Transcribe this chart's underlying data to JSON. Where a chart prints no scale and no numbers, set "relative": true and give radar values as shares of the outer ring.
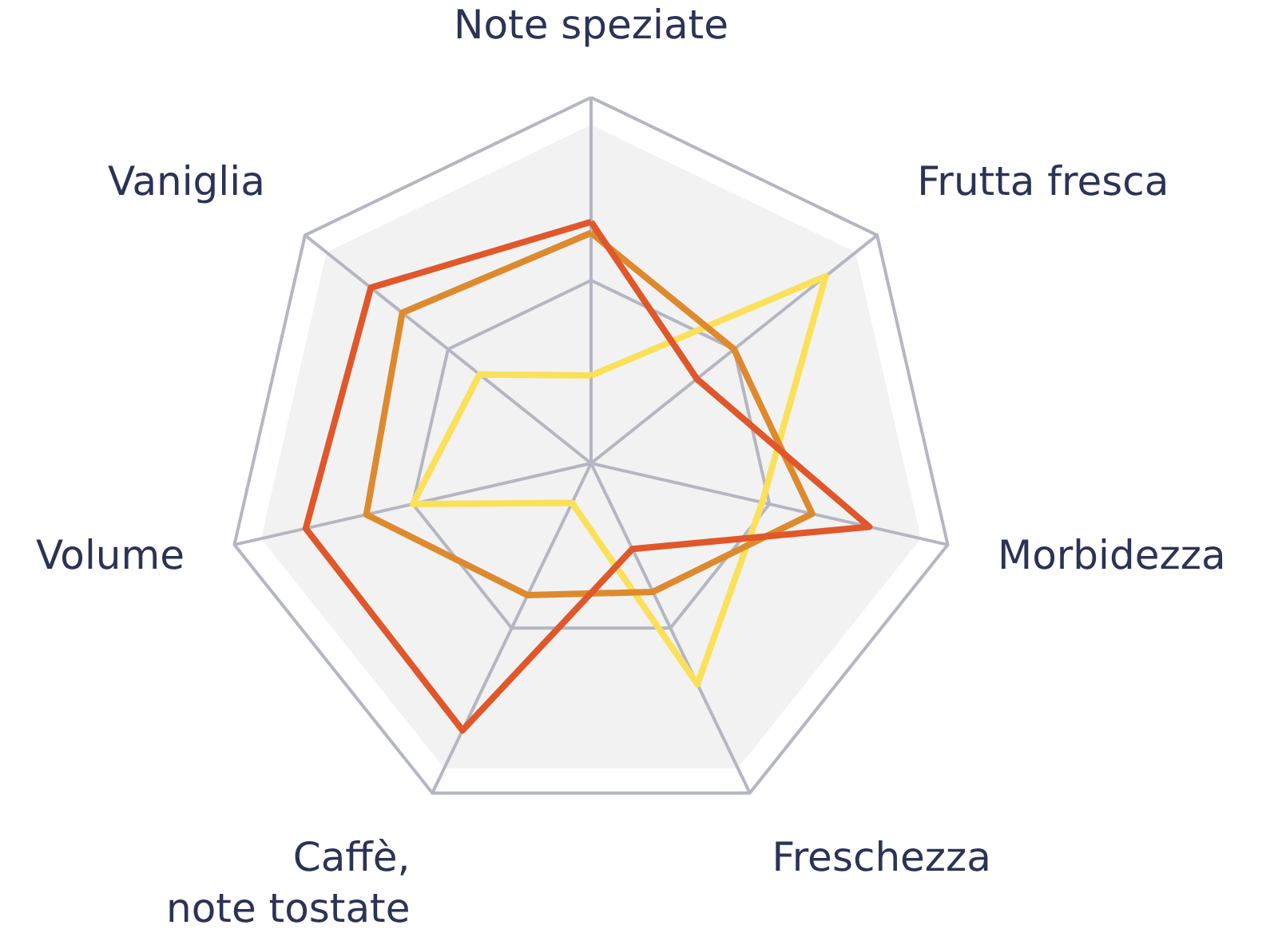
{
  "chart_data": {
    "type": "radar",
    "relative": true,
    "grid": true,
    "categories": [
      "Note speziate",
      "Frutta fresca",
      "Morbidezza",
      "Freschezza",
      "Caffè,\nnote tostate",
      "Volume",
      "Vaniglia"
    ],
    "series": [
      {
        "color": "#fbe05a",
        "values": [
          0.24,
          0.82,
          0.48,
          0.67,
          0.12,
          0.5,
          0.39
        ]
      },
      {
        "color": "#dd8a2e",
        "values": [
          0.63,
          0.5,
          0.62,
          0.39,
          0.4,
          0.63,
          0.66
        ]
      },
      {
        "color": "#e0572a",
        "values": [
          0.66,
          0.37,
          0.78,
          0.26,
          0.81,
          0.8,
          0.77
        ]
      }
    ]
  }
}
